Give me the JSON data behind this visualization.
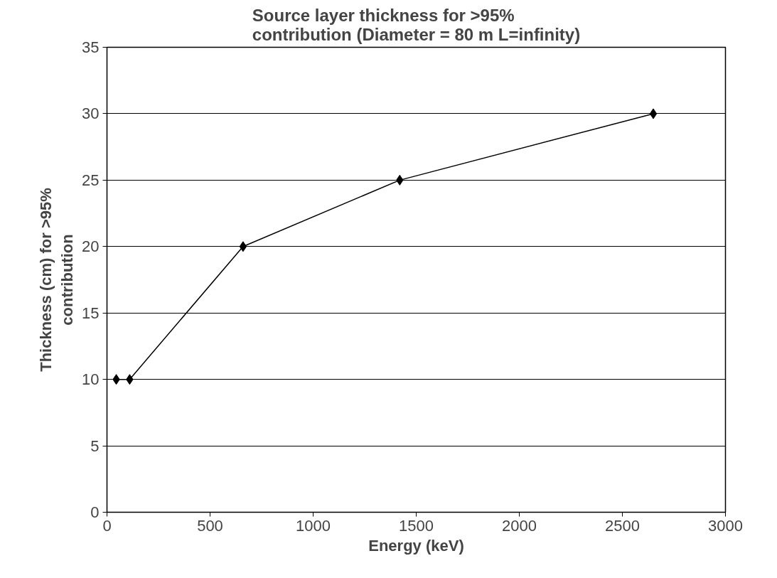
{
  "chart_data": {
    "type": "line",
    "title": "Source layer thickness for >95%\ncontribution (Diameter = 80 m L=infinity)",
    "xlabel": "Energy (keV)",
    "ylabel": "Thickness (cm) for >95%\ncontribution",
    "x": [
      45,
      110,
      660,
      1420,
      2650
    ],
    "series": [
      {
        "color": "#000000",
        "values": [
          10,
          10,
          20,
          25,
          30
        ]
      }
    ],
    "xlim": [
      0,
      3000
    ],
    "xticks": [
      0,
      500,
      1000,
      1500,
      2000,
      2500,
      3000
    ],
    "ylim": [
      0,
      35
    ],
    "yticks": [
      0,
      5,
      10,
      15,
      20,
      25,
      30,
      35
    ],
    "grid": "y",
    "marker": "diamond",
    "line_style": "solid"
  }
}
